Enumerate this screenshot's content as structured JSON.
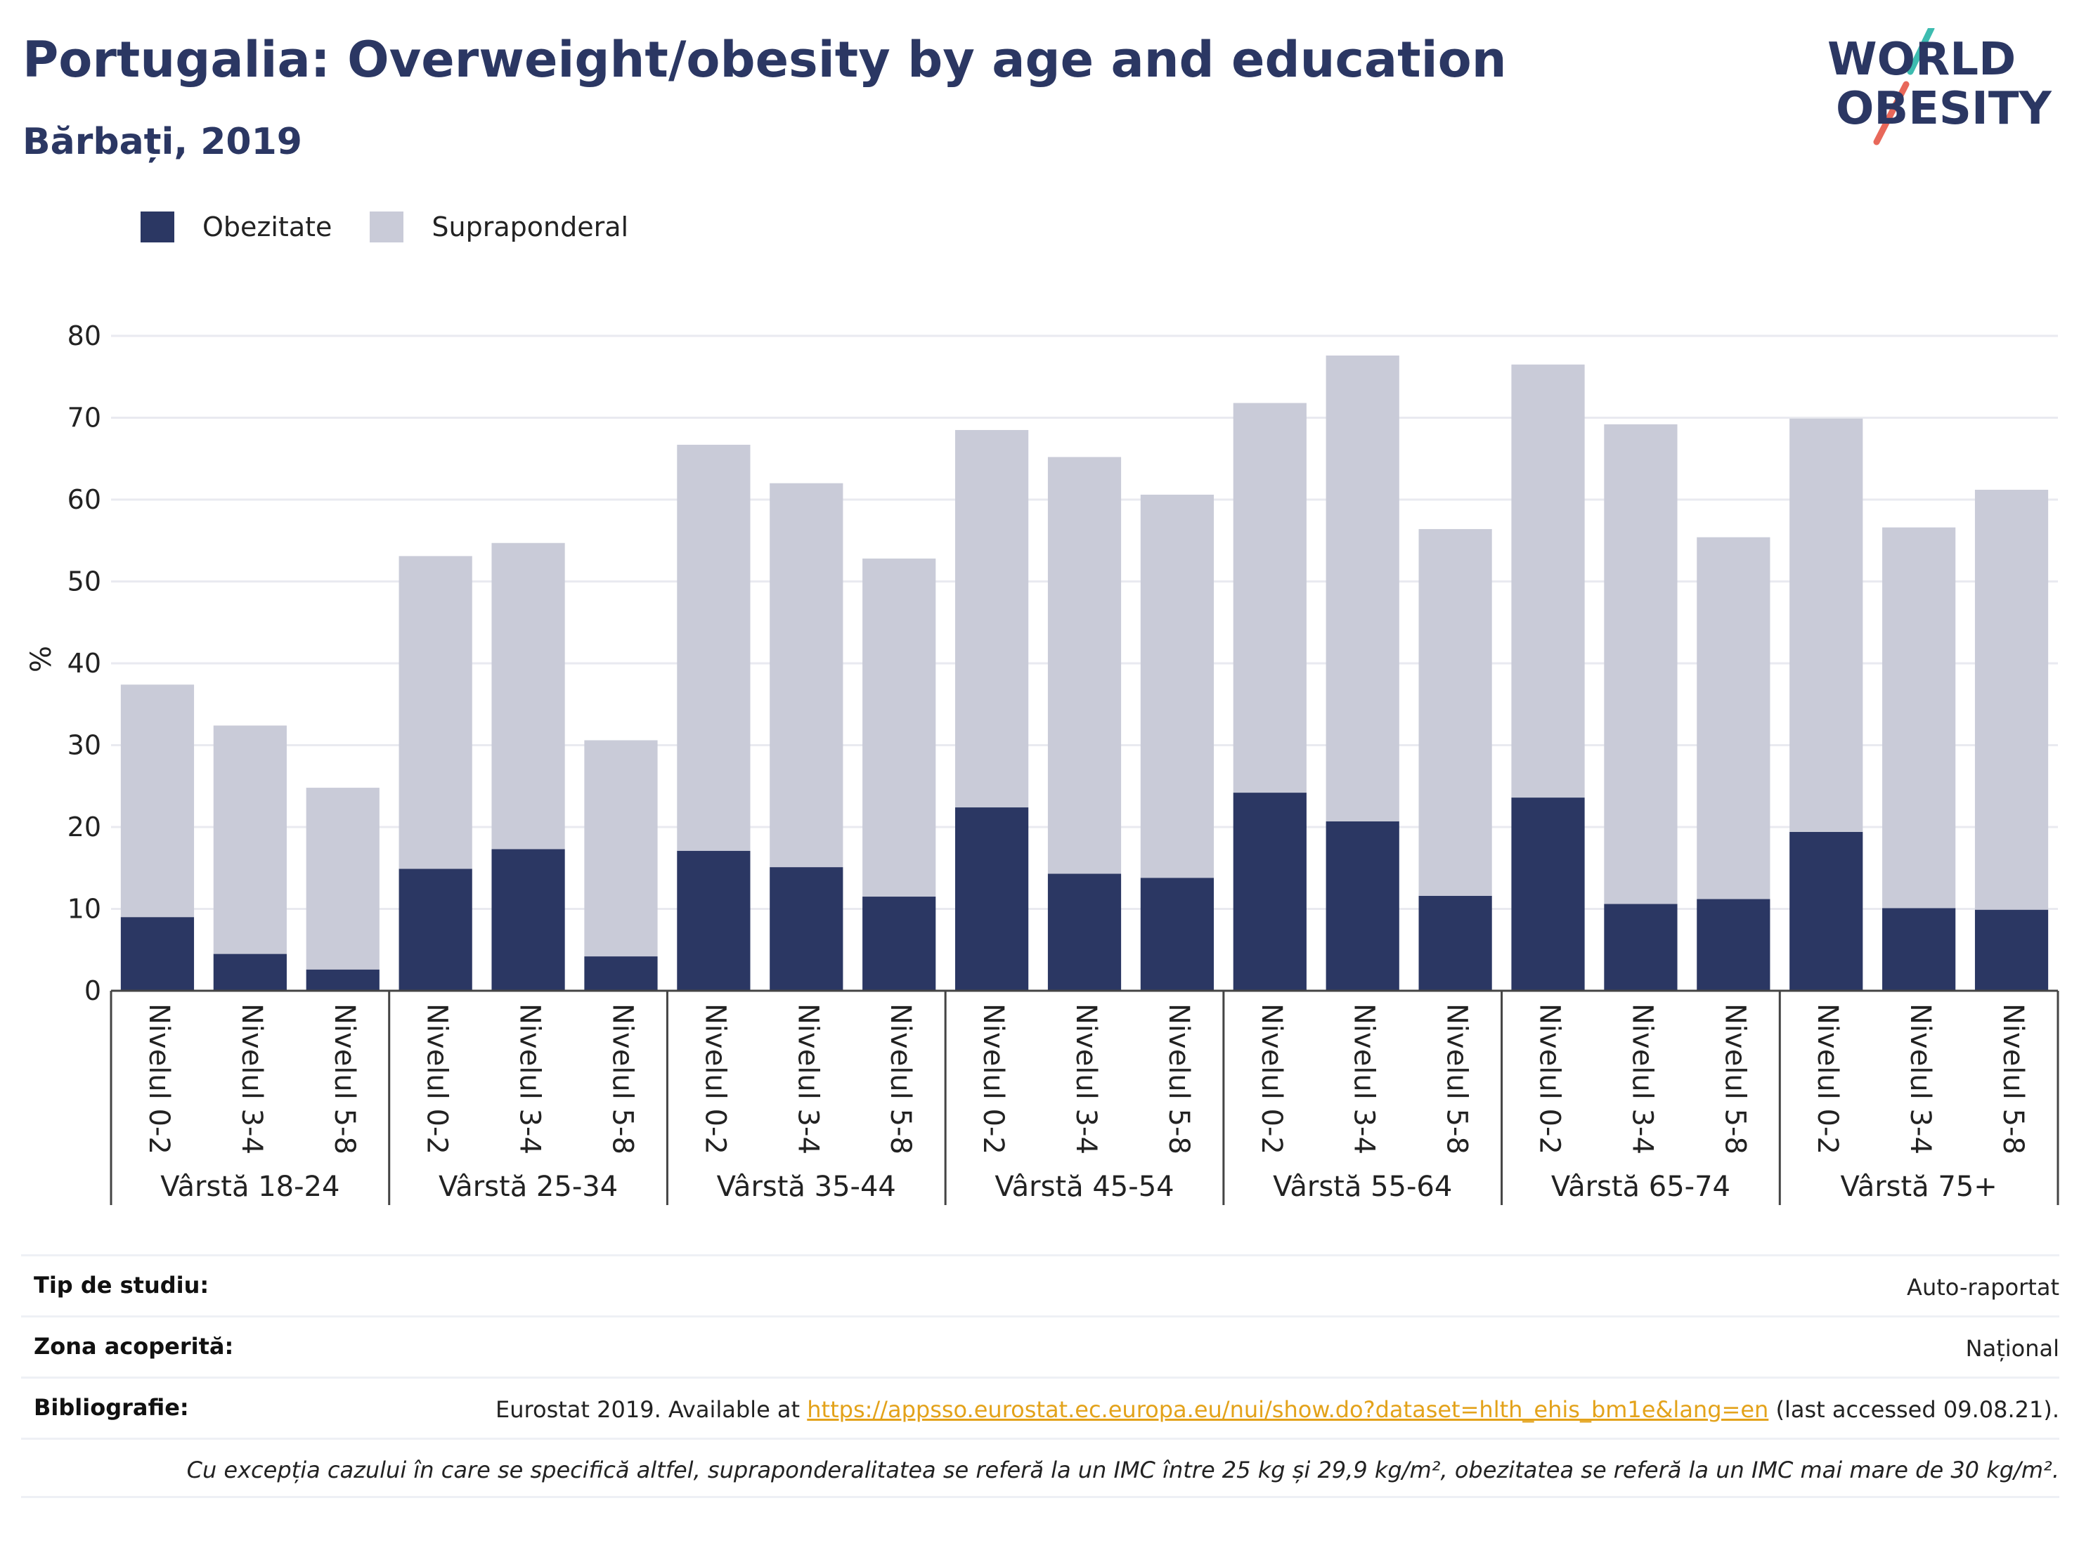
{
  "header": {
    "title": "Portugalia: Overweight/obesity by age and education",
    "subtitle": "Bărbați, 2019"
  },
  "logo": {
    "line1": "WORLD",
    "line2": "OBESITY"
  },
  "legend": [
    {
      "label": "Obezitate",
      "color": "#2b3763"
    },
    {
      "label": "Supraponderal",
      "color": "#c9cbd8"
    }
  ],
  "chart_data": {
    "type": "bar",
    "stacked": true,
    "ylabel": "%",
    "ylim": [
      0,
      80
    ],
    "yticks": [
      0,
      10,
      20,
      30,
      40,
      50,
      60,
      70,
      80
    ],
    "grid": true,
    "legend_position": "top-left",
    "groups": [
      "Vârstă 18-24",
      "Vârstă 25-34",
      "Vârstă 35-44",
      "Vârstă 45-54",
      "Vârstă 55-64",
      "Vârstă 65-74",
      "Vârstă 75+"
    ],
    "subcategories": [
      "Nivelul 0-2",
      "Nivelul 3-4",
      "Nivelul 5-8"
    ],
    "series": [
      {
        "name": "Obezitate",
        "color": "#2b3763",
        "values": [
          9.0,
          4.5,
          2.6,
          14.9,
          17.3,
          4.2,
          17.1,
          15.1,
          11.5,
          22.4,
          14.3,
          13.8,
          24.2,
          20.7,
          11.6,
          23.6,
          10.6,
          11.2,
          19.4,
          10.1,
          9.9
        ]
      },
      {
        "name": "Supraponderal",
        "color": "#c9cbd8",
        "values": [
          28.4,
          27.9,
          22.2,
          38.2,
          37.4,
          26.4,
          49.6,
          46.9,
          41.3,
          46.1,
          50.9,
          46.8,
          47.6,
          56.9,
          44.8,
          52.9,
          58.6,
          44.2,
          50.5,
          46.5,
          51.3
        ]
      }
    ]
  },
  "info": {
    "study_label": "Tip de studiu:",
    "study_value": "Auto-raportat",
    "area_label": "Zona acoperită:",
    "area_value": "Național",
    "biblio_label": "Bibliografie:",
    "biblio_prefix": "Eurostat 2019. Available at ",
    "biblio_link": "https://appsso.eurostat.ec.europa.eu/nui/show.do?dataset=hlth_ehis_bm1e&lang=en",
    "biblio_suffix": " (last accessed 09.08.21).",
    "note": "Cu excepția cazului în care se specifică altfel, supraponderalitatea se referă la un IMC între 25 kg și 29,9 kg/m², obezitatea se referă la un IMC mai mare de 30 kg/m²."
  }
}
